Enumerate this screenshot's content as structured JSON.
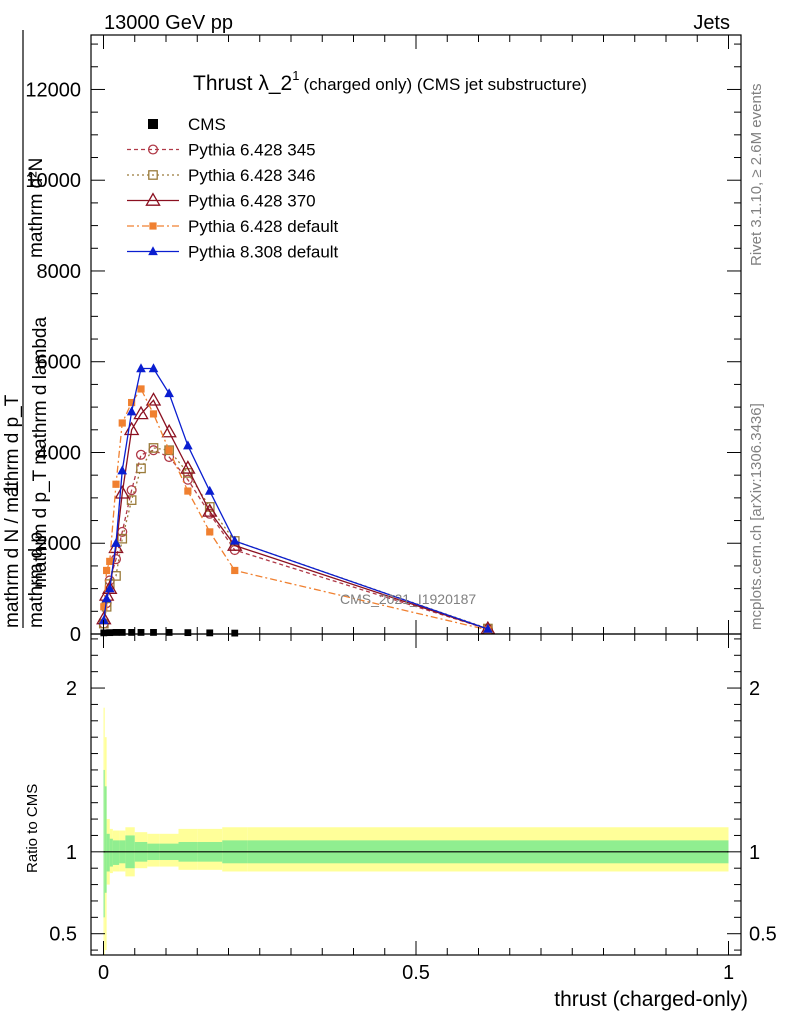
{
  "header": {
    "left": "13000 GeV pp",
    "right": "Jets"
  },
  "side_labels": {
    "rivet": "Rivet 3.1.10, ≥ 2.6M events",
    "mcplots": "mcplots.cern.ch [arXiv:1306.3436]"
  },
  "watermark": "CMS_2021_I1920187",
  "chart_data": [
    {
      "type": "line",
      "title": "Thrust λ_2",
      "title_sup": "1",
      "title_suffix": "(charged only) (CMS jet substructure)",
      "ylabel_numerator": "mathrm d²N",
      "ylabel_line1": "mathrm d p_T mathrm d lambda",
      "ylabel_one": "1",
      "ylabel_denominator": "mathrm d N / mathrm d p_T",
      "xlim": [
        -0.02,
        1.02
      ],
      "ylim": [
        0,
        13200
      ],
      "yticks": [
        0,
        2000,
        4000,
        6000,
        8000,
        10000,
        12000
      ],
      "ytick_labels": [
        "0",
        "2000",
        "4000",
        "6000",
        "8000",
        "10000",
        "12000"
      ],
      "legend": "top-left",
      "series": [
        {
          "name": "CMS",
          "color": "#000000",
          "marker": "square-filled",
          "x": [
            0.0005,
            0.01,
            0.02,
            0.03,
            0.045,
            0.06,
            0.08,
            0.105,
            0.135,
            0.17,
            0.21
          ],
          "y": [
            25,
            30,
            35,
            35,
            35,
            35,
            35,
            35,
            30,
            25,
            20
          ]
        },
        {
          "name": "Pythia 6.428 345",
          "color": "#b03a48",
          "marker": "circle-open",
          "dash": "4,3",
          "x": [
            0.0005,
            0.005,
            0.01,
            0.02,
            0.03,
            0.045,
            0.06,
            0.08,
            0.105,
            0.135,
            0.17,
            0.21,
            0.615
          ],
          "y": [
            230,
            680,
            1180,
            1650,
            2250,
            3170,
            3950,
            4050,
            3900,
            3400,
            2650,
            1850,
            110
          ]
        },
        {
          "name": "Pythia 6.428 346",
          "color": "#9a7b3a",
          "marker": "square-open",
          "dash": "2,3",
          "x": [
            0.0005,
            0.005,
            0.01,
            0.02,
            0.03,
            0.045,
            0.06,
            0.08,
            0.105,
            0.135,
            0.17,
            0.21,
            0.615
          ],
          "y": [
            230,
            600,
            1100,
            1280,
            2100,
            2950,
            3650,
            4100,
            4050,
            3550,
            2800,
            2050,
            120
          ]
        },
        {
          "name": "Pythia 6.428 370",
          "color": "#8b1020",
          "marker": "triangle-open",
          "dash": "",
          "x": [
            0.0005,
            0.005,
            0.01,
            0.02,
            0.03,
            0.045,
            0.06,
            0.08,
            0.105,
            0.135,
            0.17,
            0.21,
            0.615
          ],
          "y": [
            330,
            850,
            1000,
            1900,
            3100,
            4500,
            4850,
            5150,
            4450,
            3650,
            2700,
            1950,
            110
          ]
        },
        {
          "name": "Pythia 6.428 default",
          "color": "#f08030",
          "marker": "square-filled",
          "dash": "7,3,2,3",
          "x": [
            0.0005,
            0.005,
            0.01,
            0.02,
            0.03,
            0.045,
            0.06,
            0.08,
            0.105,
            0.135,
            0.17,
            0.21,
            0.615
          ],
          "y": [
            600,
            1400,
            1600,
            3300,
            4650,
            5100,
            5400,
            4850,
            4050,
            3150,
            2250,
            1400,
            90
          ]
        },
        {
          "name": "Pythia 8.308 default",
          "color": "#0a1ed0",
          "marker": "triangle-filled",
          "dash": "",
          "x": [
            0.0005,
            0.005,
            0.01,
            0.02,
            0.03,
            0.045,
            0.06,
            0.08,
            0.105,
            0.135,
            0.17,
            0.21,
            0.615
          ],
          "y": [
            300,
            780,
            1000,
            2000,
            3600,
            4900,
            5850,
            5850,
            5300,
            4150,
            3150,
            2050,
            110
          ]
        }
      ]
    },
    {
      "type": "area",
      "ylabel": "Ratio to CMS",
      "xlabel": "thrust (charged-only)",
      "xlim": [
        -0.02,
        1.02
      ],
      "ylim": [
        0.37,
        2.33
      ],
      "yticks": [
        0.5,
        1,
        2
      ],
      "ytick_labels": [
        "0.5",
        "1",
        "2"
      ],
      "xticks": [
        0,
        0.5,
        1
      ],
      "xtick_labels": [
        "0",
        "0.5",
        "1"
      ],
      "bins": [
        0,
        0.002,
        0.005,
        0.01,
        0.015,
        0.025,
        0.035,
        0.05,
        0.07,
        0.09,
        0.12,
        0.15,
        0.19,
        0.23,
        1.0
      ],
      "stat_band": {
        "color": "#90ee90",
        "lower": [
          0.6,
          0.75,
          0.88,
          0.91,
          0.92,
          0.93,
          0.9,
          0.94,
          0.95,
          0.95,
          0.94,
          0.94,
          0.93,
          0.93
        ],
        "upper": [
          1.5,
          1.4,
          1.11,
          1.08,
          1.07,
          1.07,
          1.1,
          1.06,
          1.05,
          1.05,
          1.06,
          1.06,
          1.07,
          1.07
        ]
      },
      "syst_band": {
        "color": "#ffff99",
        "lower": [
          0.32,
          0.4,
          0.8,
          0.87,
          0.88,
          0.88,
          0.85,
          0.9,
          0.91,
          0.91,
          0.89,
          0.89,
          0.88,
          0.88
        ],
        "upper": [
          1.88,
          1.7,
          1.2,
          1.14,
          1.13,
          1.13,
          1.15,
          1.12,
          1.11,
          1.11,
          1.14,
          1.14,
          1.15,
          1.15
        ]
      },
      "reference_line": 1
    }
  ]
}
